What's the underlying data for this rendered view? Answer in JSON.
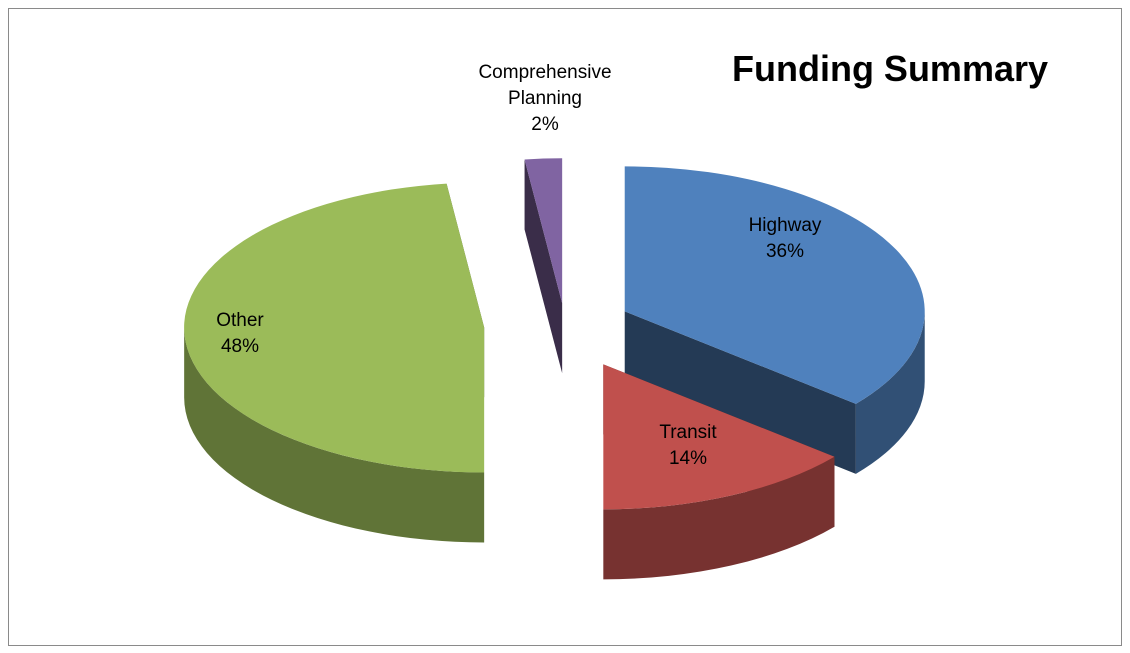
{
  "chart_data": {
    "type": "pie",
    "title": "Funding Summary",
    "categories": [
      "Highway",
      "Transit",
      "Other",
      "Comprehensive Planning"
    ],
    "values": [
      36,
      14,
      48,
      2
    ],
    "value_labels": [
      "36%",
      "14%",
      "48%",
      "2%"
    ],
    "colors": [
      "#4f81bd",
      "#c0504d",
      "#9bbb59",
      "#8064a2"
    ]
  }
}
